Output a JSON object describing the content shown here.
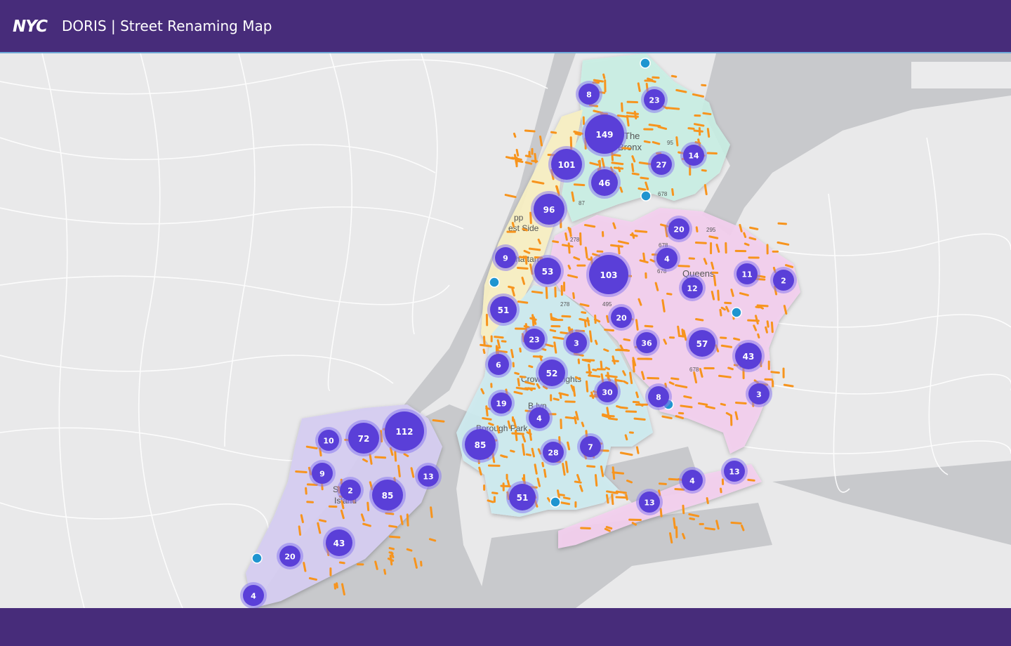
{
  "header": {
    "logo_text": "NYC",
    "title": "DORIS | Street Renaming Map"
  },
  "colors": {
    "header_bg": "#472c7a",
    "cluster_fill": "#5a3fd8",
    "cluster_halo": "#8a7af0",
    "single_point": "#1f95d0",
    "street_segment": "#f7941d",
    "bronx": "#c9f0e4",
    "manhattan": "#f7efc3",
    "queens": "#f3cfef",
    "brooklyn": "#cdeaf0",
    "staten_island": "#d5cdf1",
    "water": "#c8c9cc",
    "land": "#e9e9ea"
  },
  "place_labels": [
    {
      "id": "bronx-line1",
      "text": "The"
    },
    {
      "id": "bronx-line2",
      "text": "Bronx"
    },
    {
      "id": "uws",
      "text": "pp"
    },
    {
      "id": "uws2",
      "text": "est Side"
    },
    {
      "id": "manhattan",
      "text": "hattan"
    },
    {
      "id": "queens",
      "text": "Queens"
    },
    {
      "id": "crown",
      "text": "Crow"
    },
    {
      "id": "crown2",
      "text": "eights"
    },
    {
      "id": "brooklyn",
      "text": "B    lyn"
    },
    {
      "id": "borough-park",
      "text": "Borough Park"
    },
    {
      "id": "staten1",
      "text": "St    n"
    },
    {
      "id": "staten2",
      "text": "Island"
    },
    {
      "id": "hwy95",
      "text": "95"
    },
    {
      "id": "hwy87",
      "text": "87"
    },
    {
      "id": "hwy678a",
      "text": "678"
    },
    {
      "id": "hwy278a",
      "text": "278"
    },
    {
      "id": "hwy278b",
      "text": "278"
    },
    {
      "id": "hwy295",
      "text": "295"
    },
    {
      "id": "hwy678b",
      "text": "678"
    },
    {
      "id": "hwy678c",
      "text": "678"
    },
    {
      "id": "hwy678d",
      "text": "678"
    },
    {
      "id": "hwy495",
      "text": "495"
    }
  ],
  "clusters": [
    {
      "label": "8",
      "count": 8,
      "size": "small"
    },
    {
      "label": "23",
      "count": 23,
      "size": "small"
    },
    {
      "label": "149",
      "count": 149,
      "size": "xlarge"
    },
    {
      "label": "14",
      "count": 14,
      "size": "small"
    },
    {
      "label": "101",
      "count": 101,
      "size": "large"
    },
    {
      "label": "27",
      "count": 27,
      "size": "small"
    },
    {
      "label": "46",
      "count": 46,
      "size": "medium"
    },
    {
      "label": "96",
      "count": 96,
      "size": "large"
    },
    {
      "label": "20",
      "count": 20,
      "size": "small"
    },
    {
      "label": "9",
      "count": 9,
      "size": "small"
    },
    {
      "label": "53",
      "count": 53,
      "size": "medium"
    },
    {
      "label": "103",
      "count": 103,
      "size": "xlarge"
    },
    {
      "label": "4",
      "count": 4,
      "size": "small"
    },
    {
      "label": "11",
      "count": 11,
      "size": "small"
    },
    {
      "label": "2",
      "count": 2,
      "size": "small"
    },
    {
      "label": "12",
      "count": 12,
      "size": "small"
    },
    {
      "label": "51",
      "count": 51,
      "size": "medium"
    },
    {
      "label": "20",
      "count": 20,
      "size": "small"
    },
    {
      "label": "23",
      "count": 23,
      "size": "small"
    },
    {
      "label": "3",
      "count": 3,
      "size": "small"
    },
    {
      "label": "36",
      "count": 36,
      "size": "small"
    },
    {
      "label": "57",
      "count": 57,
      "size": "medium"
    },
    {
      "label": "43",
      "count": 43,
      "size": "medium"
    },
    {
      "label": "6",
      "count": 6,
      "size": "small"
    },
    {
      "label": "52",
      "count": 52,
      "size": "medium"
    },
    {
      "label": "30",
      "count": 30,
      "size": "small"
    },
    {
      "label": "8",
      "count": 8,
      "size": "small"
    },
    {
      "label": "3",
      "count": 3,
      "size": "small"
    },
    {
      "label": "19",
      "count": 19,
      "size": "small"
    },
    {
      "label": "4",
      "count": 4,
      "size": "small"
    },
    {
      "label": "112",
      "count": 112,
      "size": "xlarge"
    },
    {
      "label": "72",
      "count": 72,
      "size": "large"
    },
    {
      "label": "10",
      "count": 10,
      "size": "small"
    },
    {
      "label": "85",
      "count": 85,
      "size": "large"
    },
    {
      "label": "28",
      "count": 28,
      "size": "small"
    },
    {
      "label": "7",
      "count": 7,
      "size": "small"
    },
    {
      "label": "9",
      "count": 9,
      "size": "small"
    },
    {
      "label": "13",
      "count": 13,
      "size": "small"
    },
    {
      "label": "2",
      "count": 2,
      "size": "small"
    },
    {
      "label": "85",
      "count": 85,
      "size": "large"
    },
    {
      "label": "51",
      "count": 51,
      "size": "medium"
    },
    {
      "label": "13",
      "count": 13,
      "size": "small"
    },
    {
      "label": "4",
      "count": 4,
      "size": "small"
    },
    {
      "label": "13",
      "count": 13,
      "size": "small"
    },
    {
      "label": "43",
      "count": 43,
      "size": "medium"
    },
    {
      "label": "20",
      "count": 20,
      "size": "small"
    },
    {
      "label": "4",
      "count": 4,
      "size": "small"
    }
  ],
  "single_points_count": 7
}
